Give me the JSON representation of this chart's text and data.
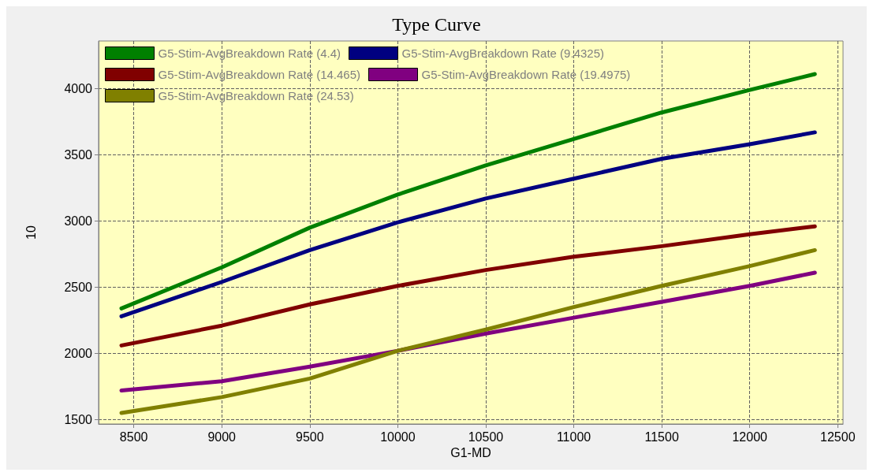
{
  "chart_data": {
    "type": "line",
    "title": "Type Curve",
    "xlabel": "G1-MD",
    "ylabel": "10",
    "xlim": [
      8300,
      12530
    ],
    "ylim": [
      1467,
      4360
    ],
    "xticks": [
      8500,
      9000,
      9500,
      10000,
      10500,
      11000,
      11500,
      12000,
      12500
    ],
    "yticks": [
      1500,
      2000,
      2500,
      3000,
      3500,
      4000
    ],
    "grid": true,
    "legend": "top left",
    "marker": "none",
    "line_style": "solid",
    "x": [
      8430,
      9000,
      9500,
      10000,
      10500,
      11000,
      11500,
      12000,
      12370
    ],
    "series": [
      {
        "name": "G5-Stim-AvgBreakdown Rate (4.4)",
        "color": "#008000",
        "values": [
          2340,
          2650,
          2950,
          3200,
          3420,
          3620,
          3820,
          3990,
          4110
        ]
      },
      {
        "name": "G5-Stim-AvgBreakdown Rate (9.4325)",
        "color": "#000080",
        "values": [
          2280,
          2540,
          2780,
          2990,
          3170,
          3320,
          3470,
          3580,
          3670
        ]
      },
      {
        "name": "G5-Stim-AvgBreakdown Rate (14.465)",
        "color": "#800000",
        "values": [
          2060,
          2210,
          2370,
          2510,
          2630,
          2730,
          2810,
          2900,
          2960
        ]
      },
      {
        "name": "G5-Stim-AvgBreakdown Rate (19.4975)",
        "color": "#800080",
        "values": [
          1720,
          1790,
          1900,
          2020,
          2150,
          2270,
          2390,
          2510,
          2610
        ]
      },
      {
        "name": "G5-Stim-AvgBreakdown Rate (24.53)",
        "color": "#808000",
        "values": [
          1550,
          1670,
          1810,
          2020,
          2180,
          2350,
          2510,
          2660,
          2780
        ]
      }
    ]
  }
}
